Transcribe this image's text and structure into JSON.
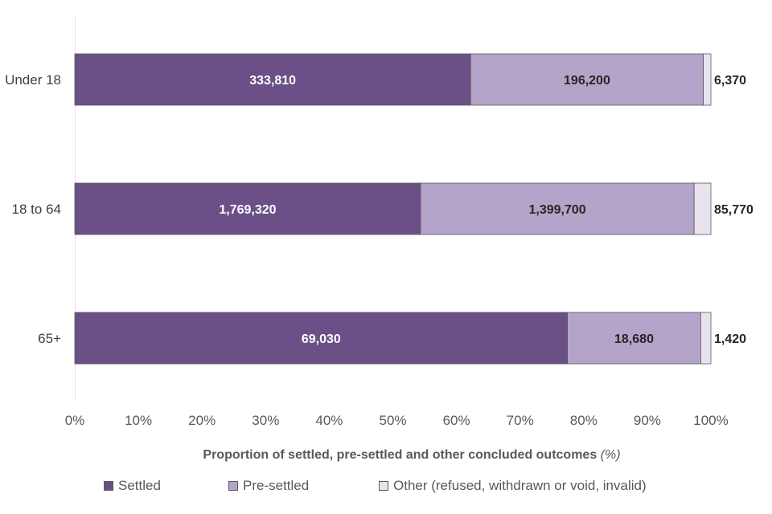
{
  "chart_data": {
    "type": "bar",
    "orientation": "horizontal",
    "stacked": "percent",
    "categories": [
      "Under 18",
      "18 to 64",
      "65+"
    ],
    "series": [
      {
        "name": "Settled",
        "values": [
          333810,
          1769320,
          69030
        ],
        "labels": [
          "333,810",
          "1,769,320",
          "69,030"
        ],
        "color": "#6a5087",
        "label_color": "#ffffff"
      },
      {
        "name": "Pre-settled",
        "values": [
          196200,
          1399700,
          18680
        ],
        "labels": [
          "196,200",
          "1,399,700",
          "18,680"
        ],
        "color": "#b4a4c9",
        "label_color": "#262626"
      },
      {
        "name": "Other (refused, withdrawn or void, invalid)",
        "values": [
          6370,
          85770,
          1420
        ],
        "labels": [
          "6,370",
          "85,770",
          "1,420"
        ],
        "color": "#e8e3ef",
        "label_color": "#262626"
      }
    ],
    "xlim": [
      0,
      100
    ],
    "x_ticks": [
      "0%",
      "10%",
      "20%",
      "30%",
      "40%",
      "50%",
      "60%",
      "70%",
      "80%",
      "90%",
      "100%"
    ],
    "xlabel": "Proportion of settled, pre-settled and other concluded outcomes",
    "xlabel_unit": "(%)",
    "legend_position": "bottom"
  }
}
